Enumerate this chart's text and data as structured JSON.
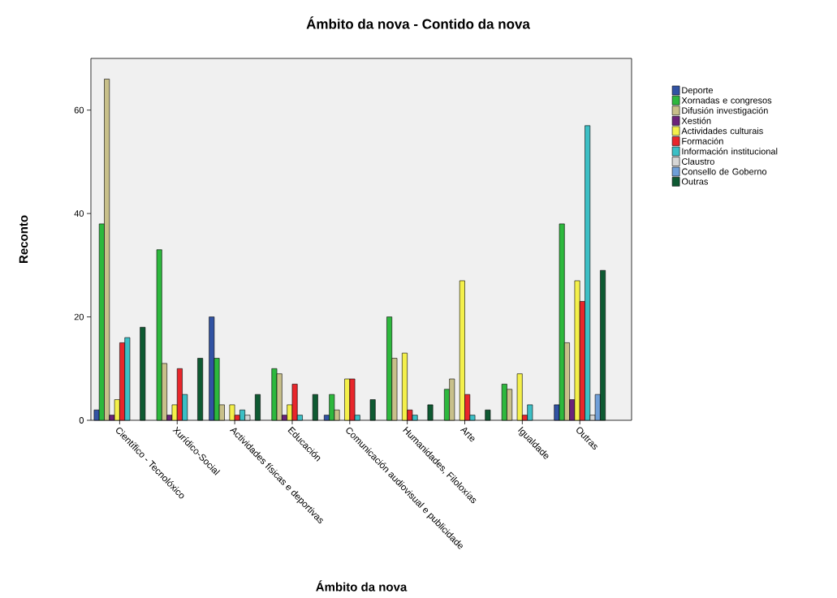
{
  "chart_data": {
    "type": "bar",
    "title": "Ámbito da nova - Contido da nova",
    "xlabel": "Ámbito da nova",
    "ylabel": "Reconto",
    "categories": [
      "Científico - Tecnolóxico",
      "Xurídico-Social",
      "Actividades físicas e deportivas",
      "Educación",
      "Comunicación audiovisual e publicidade",
      "Humanidades, Filoloxías",
      "Arte",
      "Igualdade",
      "Outras"
    ],
    "series": [
      {
        "name": "Deporte",
        "color": "#3153a3",
        "values": [
          2,
          null,
          20,
          null,
          1,
          null,
          null,
          null,
          3
        ]
      },
      {
        "name": "Xornadas e congresos",
        "color": "#2db83d",
        "values": [
          38,
          33,
          12,
          10,
          5,
          20,
          6,
          7,
          38
        ]
      },
      {
        "name": "Difusión investigación",
        "color": "#c8c08a",
        "values": [
          66,
          11,
          3,
          9,
          2,
          12,
          8,
          6,
          15
        ]
      },
      {
        "name": "Xestión",
        "color": "#6b237a",
        "values": [
          1,
          1,
          null,
          1,
          null,
          null,
          null,
          null,
          4
        ]
      },
      {
        "name": "Actividades culturais",
        "color": "#f4f04a",
        "values": [
          4,
          3,
          3,
          3,
          8,
          13,
          27,
          9,
          27
        ]
      },
      {
        "name": "Formación",
        "color": "#e8262b",
        "values": [
          15,
          10,
          1,
          7,
          8,
          2,
          5,
          1,
          23
        ]
      },
      {
        "name": "Información institucional",
        "color": "#3cbfc5",
        "values": [
          16,
          5,
          2,
          1,
          1,
          1,
          1,
          3,
          57
        ]
      },
      {
        "name": "Claustro",
        "color": "#d6d6d6",
        "values": [
          null,
          null,
          1,
          null,
          null,
          null,
          null,
          null,
          1
        ]
      },
      {
        "name": "Consello de Goberno",
        "color": "#6f9fd8",
        "values": [
          null,
          null,
          null,
          null,
          null,
          null,
          null,
          null,
          5
        ]
      },
      {
        "name": "Outras",
        "color": "#0e5a32",
        "values": [
          18,
          12,
          5,
          5,
          4,
          3,
          2,
          null,
          29
        ]
      }
    ],
    "ylim": [
      0,
      70
    ],
    "yticks": [
      0,
      20,
      40,
      60
    ],
    "grid": false,
    "legend": "right"
  }
}
